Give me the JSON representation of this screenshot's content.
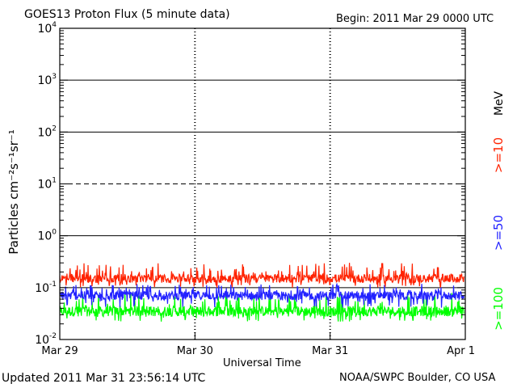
{
  "chart_data": {
    "type": "line",
    "title": "GOES13 Proton Flux (5 minute data)",
    "begin_label": "Begin: 2011 Mar 29 0000 UTC",
    "xlabel": "Universal Time",
    "ylabel": "Particles cm⁻²s⁻¹sr⁻¹",
    "yscale": "log",
    "ylim": [
      0.01,
      10000
    ],
    "ytick_labels": [
      {
        "base": "10",
        "exp": "4",
        "value": 10000
      },
      {
        "base": "10",
        "exp": "3",
        "value": 1000
      },
      {
        "base": "10",
        "exp": "2",
        "value": 100
      },
      {
        "base": "10",
        "exp": "1",
        "value": 10
      },
      {
        "base": "10",
        "exp": "0",
        "value": 1
      },
      {
        "base": "10",
        "exp": "-1",
        "value": 0.1
      },
      {
        "base": "10",
        "exp": "-2",
        "value": 0.01
      }
    ],
    "xlim_days": [
      0,
      3
    ],
    "xtick_labels": [
      {
        "label": "Mar 29",
        "day": 0
      },
      {
        "label": "Mar 30",
        "day": 1
      },
      {
        "label": "Mar 31",
        "day": 2
      },
      {
        "label": "Apr 1",
        "day": 3
      }
    ],
    "grid": true,
    "legend_unit": "MeV",
    "series": [
      {
        "name": ">=10",
        "color": "#ff2200",
        "typical": 0.15,
        "min": 0.1,
        "max": 0.3,
        "x_end_day": 2.99
      },
      {
        "name": ">=50",
        "color": "#2222ff",
        "typical": 0.07,
        "min": 0.04,
        "max": 0.12,
        "x_end_day": 2.99
      },
      {
        "name": ">=100",
        "color": "#00ff00",
        "typical": 0.035,
        "min": 0.022,
        "max": 0.08,
        "x_end_day": 2.99
      }
    ],
    "threshold_line": {
      "value": 10,
      "style": "dashed"
    }
  },
  "footer": {
    "updated": "Updated 2011 Mar 31 23:56:14 UTC",
    "credit": "NOAA/SWPC Boulder, CO USA"
  }
}
